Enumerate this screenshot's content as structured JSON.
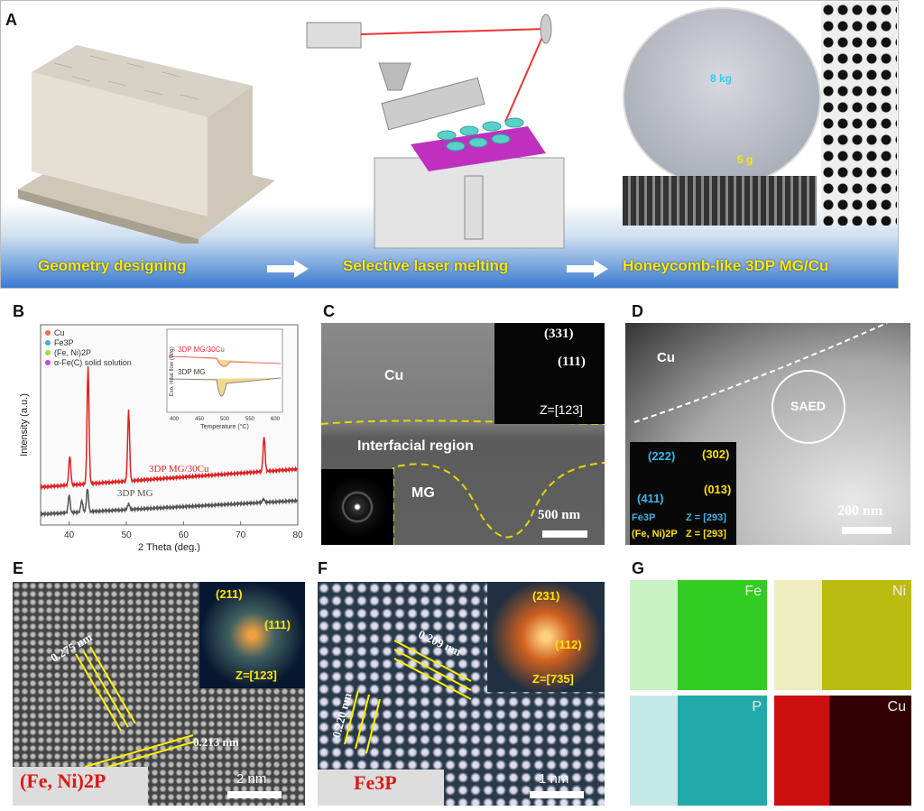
{
  "panels": {
    "a": "A",
    "b": "B",
    "c": "C",
    "d": "D",
    "e": "E",
    "f": "F",
    "g": "G"
  },
  "panelA": {
    "steps": [
      "Geometry  designing",
      "Selective laser melting",
      "Honeycomb-like 3DP MG/Cu"
    ],
    "load_top": "8 kg",
    "load_bottom": "5 g"
  },
  "chart_data": {
    "type": "line",
    "xlabel": "2 Theta (deg.)",
    "ylabel": "Intensity (a.u.)",
    "xlim": [
      35,
      80
    ],
    "xticks": [
      40,
      50,
      60,
      70,
      80
    ],
    "grid": false,
    "legend_placement": "top-left",
    "legend": [
      {
        "name": "Cu",
        "marker": "circle",
        "color": "#ee6a5a"
      },
      {
        "name": "Fe3P",
        "marker": "triangle-down",
        "color": "#3ab0e0"
      },
      {
        "name": "(Fe, Ni)2P",
        "marker": "diamond",
        "color": "#99dd44"
      },
      {
        "name": "α-Fe(C) solid solution",
        "marker": "star",
        "color": "#cc44ee"
      }
    ],
    "series": [
      {
        "name": "3DP MG/30Cu",
        "color": "#e02020",
        "peaks": [
          [
            40.1,
            0.25
          ],
          [
            43.3,
            1.0
          ],
          [
            50.4,
            0.6
          ],
          [
            74.1,
            0.3
          ]
        ]
      },
      {
        "name": "3DP MG",
        "color": "#555555",
        "peaks": [
          [
            40.0,
            0.15
          ],
          [
            42.2,
            0.1
          ],
          [
            43.2,
            0.2
          ],
          [
            50.4,
            0.05
          ],
          [
            74.0,
            0.03
          ]
        ]
      }
    ],
    "inset": {
      "xlabel": "Temperature (°C)",
      "ylabel": "Exo. Heat flow (W/g)",
      "xticks": [
        400,
        450,
        500,
        550,
        600
      ],
      "series": [
        "3DP MG/30Cu",
        "3DP MG"
      ]
    }
  },
  "panelC": {
    "cu": "Cu",
    "interface": "Interfacial region",
    "mg": "MG",
    "spots": [
      "(331)",
      "(111)"
    ],
    "zone": "Z=[123]",
    "scale": "500 nm"
  },
  "panelD": {
    "cu": "Cu",
    "saed": "SAED",
    "spots_blue": [
      "(222)",
      "(411)"
    ],
    "spots_yellow": [
      "(302)",
      "(013)"
    ],
    "zone1_phase": "Fe3P",
    "zone1": "Z = [293]",
    "zone2_phase": "(Fe, Ni)2P",
    "zone2": "Z = [293]",
    "scale": "200 nm"
  },
  "panelE": {
    "d1": "0.275 nm",
    "d2": "0.213 nm",
    "spots": [
      "(211)",
      "(111)"
    ],
    "zone": "Z=[123]",
    "phase": "(Fe, Ni)2P",
    "scale": "2 nm"
  },
  "panelF": {
    "d1": "0.209 nm",
    "d2": "0.220 nm",
    "spots": [
      "(231)",
      "(112)"
    ],
    "zone": "Z=[735]",
    "phase": "Fe3P",
    "scale": "1 nm"
  },
  "panelG": {
    "maps": [
      {
        "el": "Fe",
        "color": "#33cc22"
      },
      {
        "el": "Ni",
        "color": "#bbbb10"
      },
      {
        "el": "P",
        "color": "#22aaaa"
      },
      {
        "el": "Cu",
        "color": "#cc1010"
      }
    ]
  }
}
